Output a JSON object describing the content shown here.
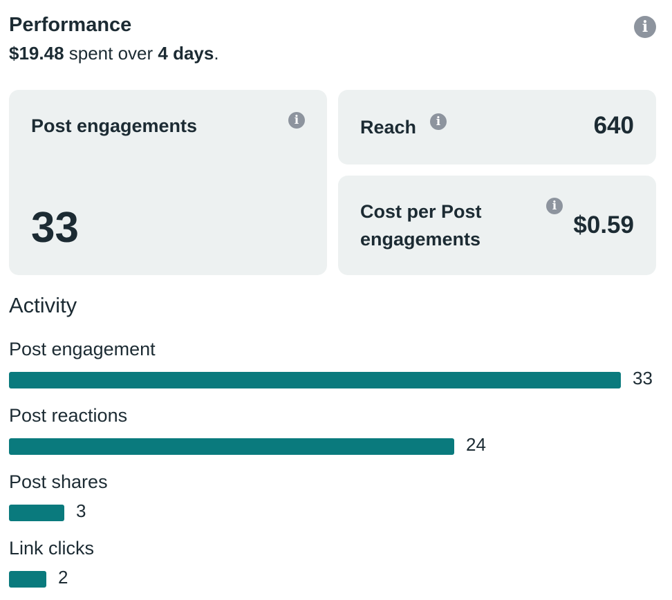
{
  "performance": {
    "title": "Performance",
    "amount": "$19.48",
    "spent_text": " spent over ",
    "duration": "4 days",
    "period": "."
  },
  "cards": {
    "post_engagements": {
      "label": "Post engagements",
      "value": "33"
    },
    "reach": {
      "label": "Reach",
      "value": "640"
    },
    "cost_per": {
      "label": "Cost per Post engagements",
      "value": "$0.59"
    }
  },
  "icons": {
    "info": "info-icon",
    "info_glyph": "i"
  },
  "colors": {
    "bar": "#0a7a7d",
    "card_bg": "#edf1f1",
    "text": "#1c2b33",
    "info_icon": "#8d949e"
  },
  "activity": {
    "title": "Activity",
    "max": 33,
    "rows": [
      {
        "label": "Post engagement",
        "value": 33,
        "display": "33"
      },
      {
        "label": "Post reactions",
        "value": 24,
        "display": "24"
      },
      {
        "label": "Post shares",
        "value": 3,
        "display": "3"
      },
      {
        "label": "Link clicks",
        "value": 2,
        "display": "2"
      }
    ]
  }
}
